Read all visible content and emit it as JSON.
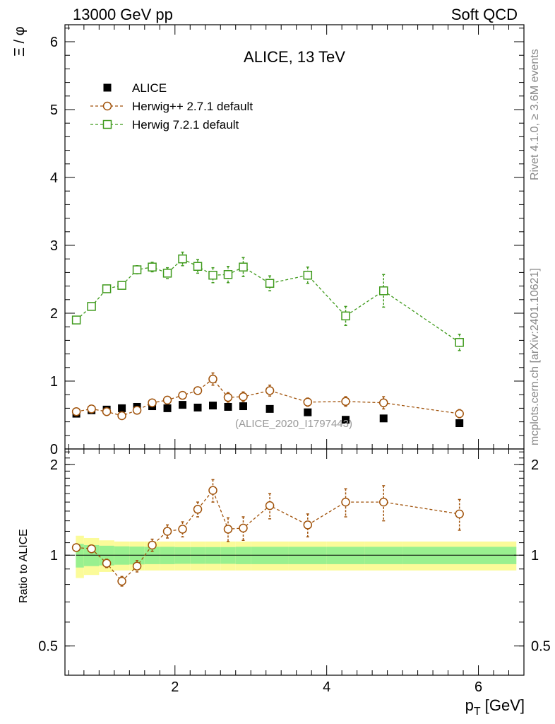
{
  "header": {
    "left": "13000 GeV pp",
    "right": "Soft QCD"
  },
  "side_labels": {
    "rivet": "Rivet 4.1.0, ≥ 3.6M events",
    "mcplots": "mcplots.cern.ch [arXiv:2401.10621]"
  },
  "chart_data": [
    {
      "type": "scatter",
      "panel": "main",
      "title": "ALICE, 13 TeV",
      "ylabel": "Ξ / φ",
      "xlabel": "p_T [GeV]",
      "xlim": [
        0.55,
        6.6
      ],
      "ylim": [
        0,
        6.25
      ],
      "y_ticks": [
        0,
        1,
        2,
        3,
        4,
        5,
        6
      ],
      "y_tick_labels": [
        "0",
        "1",
        "2",
        "3",
        "4",
        "5",
        "6"
      ],
      "x_ticks": [
        2,
        4,
        6
      ],
      "watermark": "(ALICE_2020_I1797443)",
      "legend_position": "top-left",
      "series": [
        {
          "name": "ALICE",
          "marker": "filled-square",
          "color": "#000000",
          "line": false,
          "x": [
            0.7,
            0.9,
            1.1,
            1.3,
            1.5,
            1.7,
            1.9,
            2.1,
            2.3,
            2.5,
            2.7,
            2.9,
            3.25,
            3.75,
            4.25,
            4.75,
            5.75
          ],
          "y": [
            0.52,
            0.57,
            0.58,
            0.6,
            0.62,
            0.63,
            0.6,
            0.65,
            0.61,
            0.64,
            0.62,
            0.63,
            0.59,
            0.54,
            0.43,
            0.45,
            0.38
          ]
        },
        {
          "name": "Herwig++ 2.7.1 default",
          "marker": "open-circle",
          "color": "#a0520a",
          "line": true,
          "x": [
            0.7,
            0.9,
            1.1,
            1.3,
            1.5,
            1.7,
            1.9,
            2.1,
            2.3,
            2.5,
            2.7,
            2.9,
            3.25,
            3.75,
            4.25,
            4.75,
            5.75
          ],
          "y": [
            0.55,
            0.59,
            0.55,
            0.49,
            0.57,
            0.68,
            0.72,
            0.79,
            0.86,
            1.03,
            0.76,
            0.77,
            0.86,
            0.69,
            0.7,
            0.68,
            0.52
          ],
          "err": [
            0.02,
            0.02,
            0.02,
            0.02,
            0.03,
            0.03,
            0.04,
            0.05,
            0.05,
            0.09,
            0.07,
            0.07,
            0.08,
            0.06,
            0.07,
            0.09,
            0.06
          ]
        },
        {
          "name": "Herwig 7.2.1 default",
          "marker": "open-square",
          "color": "#3f9a1c",
          "line": true,
          "x": [
            0.7,
            0.9,
            1.1,
            1.3,
            1.5,
            1.7,
            1.9,
            2.1,
            2.3,
            2.5,
            2.7,
            2.9,
            3.25,
            3.75,
            4.25,
            4.75,
            5.75
          ],
          "y": [
            1.9,
            2.1,
            2.36,
            2.41,
            2.64,
            2.68,
            2.59,
            2.8,
            2.69,
            2.56,
            2.57,
            2.68,
            2.44,
            2.56,
            1.96,
            2.33,
            1.57
          ],
          "err": [
            0.03,
            0.04,
            0.04,
            0.05,
            0.06,
            0.07,
            0.08,
            0.1,
            0.1,
            0.11,
            0.12,
            0.14,
            0.11,
            0.12,
            0.14,
            0.24,
            0.12
          ]
        }
      ]
    },
    {
      "type": "scatter",
      "panel": "ratio",
      "ylabel": "Ratio to ALICE",
      "xlabel": "p_T [GeV]",
      "xlim": [
        0.55,
        6.6
      ],
      "ylim": [
        0.4,
        2.25
      ],
      "y_scale": "log",
      "y_ticks": [
        0.5,
        1,
        2
      ],
      "y_tick_labels": [
        "0.5",
        "1",
        "2"
      ],
      "x_ticks": [
        2,
        4,
        6
      ],
      "x_tick_labels": [
        "2",
        "4",
        "6"
      ],
      "bands": {
        "bin_edges": [
          0.6,
          0.8,
          1.0,
          1.2,
          1.4,
          1.6,
          1.8,
          2.0,
          2.2,
          2.4,
          2.6,
          2.8,
          3.0,
          3.5,
          4.0,
          4.5,
          5.0,
          6.5
        ],
        "stat_half_width": [
          0.09,
          0.08,
          0.075,
          0.07,
          0.068,
          0.066,
          0.066,
          0.064,
          0.064,
          0.064,
          0.064,
          0.066,
          0.066,
          0.066,
          0.066,
          0.066,
          0.066
        ],
        "total_half_width": [
          0.16,
          0.14,
          0.12,
          0.11,
          0.11,
          0.11,
          0.11,
          0.11,
          0.11,
          0.11,
          0.11,
          0.11,
          0.11,
          0.11,
          0.11,
          0.11,
          0.11
        ],
        "stat_color": "#99f08f",
        "total_color": "#fbfb99"
      },
      "series": [
        {
          "name": "Herwig++ 2.7.1 default",
          "marker": "open-circle",
          "color": "#a0520a",
          "line": true,
          "x": [
            0.7,
            0.9,
            1.1,
            1.3,
            1.5,
            1.7,
            1.9,
            2.1,
            2.3,
            2.5,
            2.7,
            2.9,
            3.25,
            3.75,
            4.25,
            4.75,
            5.75
          ],
          "y": [
            1.06,
            1.05,
            0.94,
            0.82,
            0.92,
            1.08,
            1.2,
            1.22,
            1.42,
            1.64,
            1.22,
            1.23,
            1.46,
            1.26,
            1.5,
            1.5,
            1.37
          ],
          "err": [
            0.03,
            0.03,
            0.03,
            0.03,
            0.04,
            0.05,
            0.06,
            0.07,
            0.08,
            0.14,
            0.11,
            0.11,
            0.14,
            0.11,
            0.16,
            0.2,
            0.16
          ]
        }
      ]
    }
  ]
}
